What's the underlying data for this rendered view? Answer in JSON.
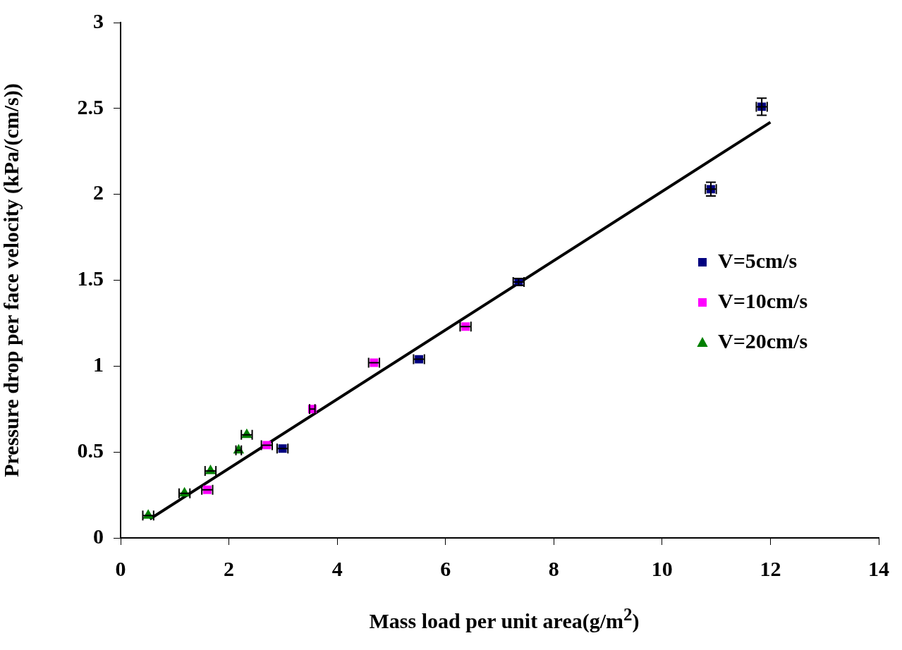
{
  "chart_data": {
    "type": "scatter",
    "xlabel": "Mass load per unit area(g/m$^{2}$)",
    "ylabel": "Pressure drop per face velocity (kPa/(cm/s))",
    "xlim": [
      0,
      14
    ],
    "xticks": [
      0,
      2,
      4,
      6,
      8,
      10,
      12,
      14
    ],
    "ylim": [
      0,
      3
    ],
    "yticks": [
      0,
      0.5,
      1,
      1.5,
      2,
      2.5,
      3
    ],
    "grid": false,
    "legend": "right",
    "series": [
      {
        "name": "V=5cm/s",
        "color": "#000080",
        "marker": "square",
        "x": [
          2.99,
          5.51,
          7.35,
          10.9,
          11.84
        ],
        "values": [
          0.52,
          1.04,
          1.49,
          2.03,
          2.51
        ],
        "xerrors": [
          0.1,
          0.1,
          0.1,
          0.1,
          0.1
        ],
        "errors": [
          null,
          null,
          0.02,
          0.04,
          0.05
        ]
      },
      {
        "name": "V=10cm/s",
        "color": "#ff00ff",
        "marker": "square",
        "x": [
          1.6,
          2.7,
          3.54,
          4.68,
          6.37
        ],
        "values": [
          0.28,
          0.54,
          0.75,
          1.02,
          1.23
        ],
        "xerrors": [
          0.1,
          0.1,
          0.05,
          0.1,
          0.1
        ]
      },
      {
        "name": "V=20cm/s",
        "color": "#008000",
        "marker": "triangle",
        "x": [
          0.51,
          1.18,
          1.66,
          2.18,
          2.33
        ],
        "values": [
          0.13,
          0.26,
          0.39,
          0.51,
          0.6
        ],
        "xerrors": [
          0.1,
          0.1,
          0.1,
          0.05,
          0.1
        ]
      },
      {
        "type": "line",
        "color": "#000000",
        "line_style": "solid",
        "marker": "none",
        "x": [
          0.54,
          12.0
        ],
        "values": [
          0.11,
          2.42
        ]
      }
    ]
  }
}
